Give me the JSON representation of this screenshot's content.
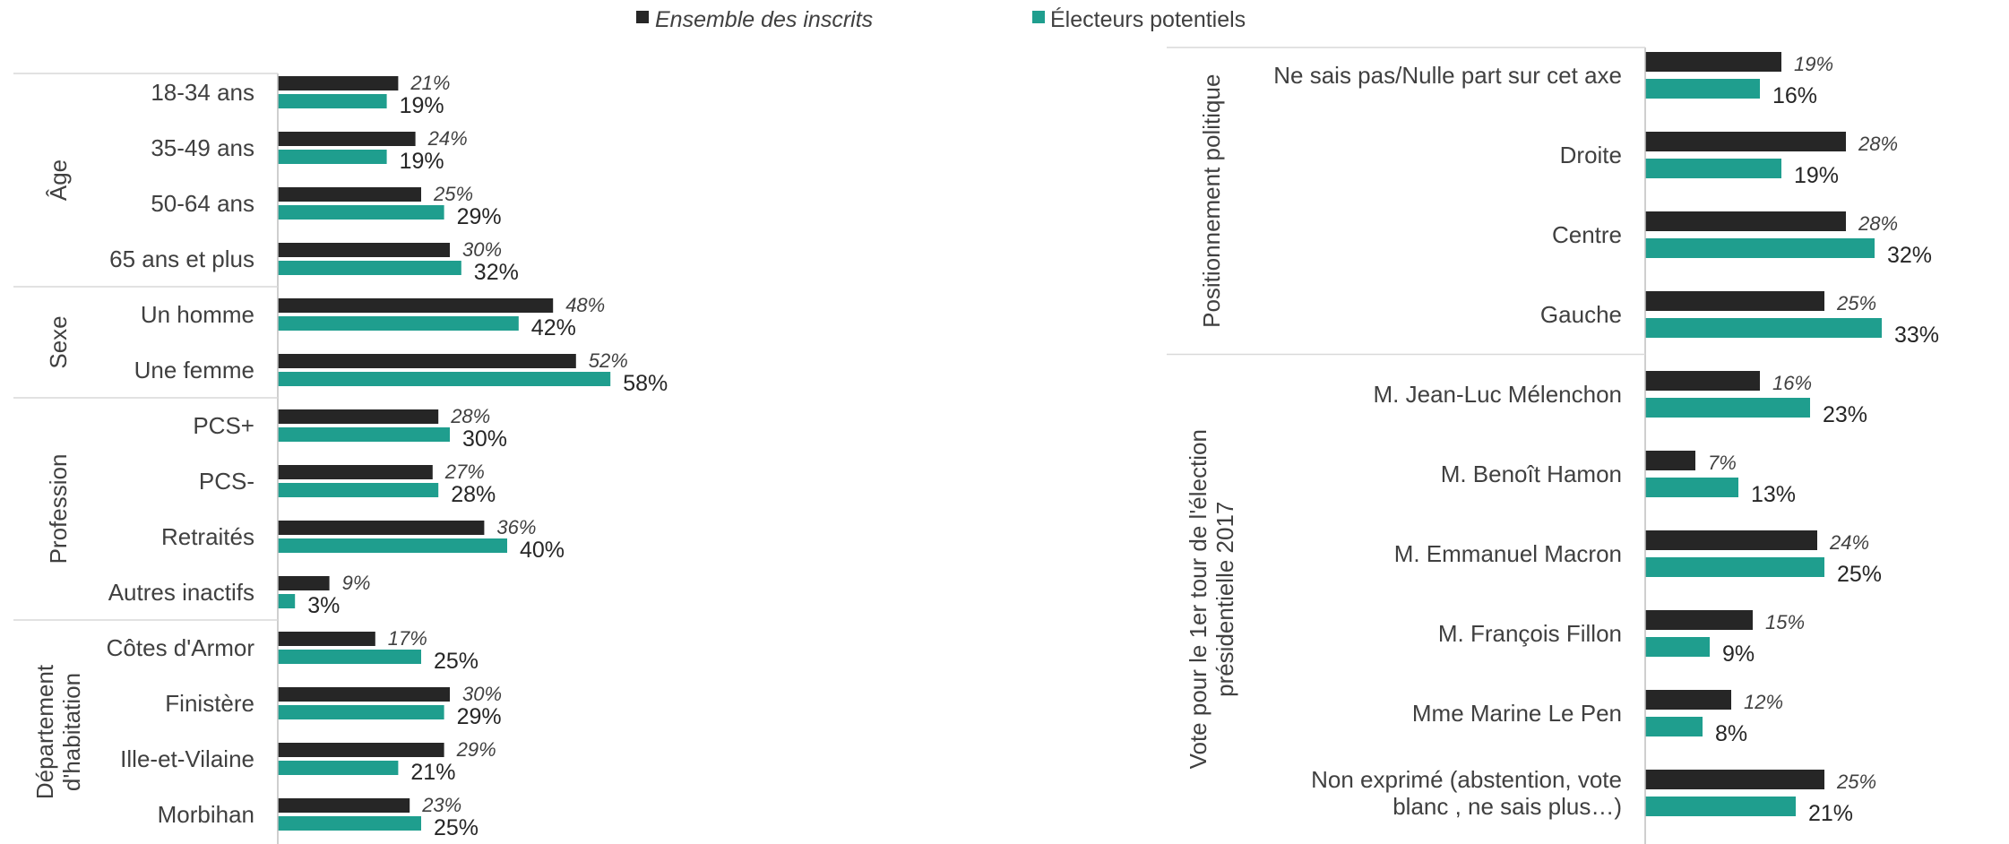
{
  "legend": {
    "series_a": "Ensemble des inscrits",
    "series_b": "Électeurs potentiels"
  },
  "colors": {
    "series_a": "#262626",
    "series_b": "#1f9e8e",
    "text": "#404040"
  },
  "chart_data": [
    {
      "type": "bar",
      "orientation": "horizontal",
      "value_format": "percent",
      "xlim": [
        0,
        100
      ],
      "grid": false,
      "legend_position": "top",
      "series": [
        {
          "name": "Ensemble des inscrits"
        },
        {
          "name": "Électeurs potentiels"
        }
      ],
      "groups": [
        {
          "label": "Âge",
          "items": [
            {
              "category": "18-34 ans",
              "a": 21,
              "b": 19
            },
            {
              "category": "35-49 ans",
              "a": 24,
              "b": 19
            },
            {
              "category": "50-64 ans",
              "a": 25,
              "b": 29
            },
            {
              "category": "65 ans et plus",
              "a": 30,
              "b": 32
            }
          ]
        },
        {
          "label": "Sexe",
          "items": [
            {
              "category": "Un homme",
              "a": 48,
              "b": 42
            },
            {
              "category": "Une femme",
              "a": 52,
              "b": 58
            }
          ]
        },
        {
          "label": "Profession",
          "items": [
            {
              "category": "PCS+",
              "a": 28,
              "b": 30
            },
            {
              "category": "PCS-",
              "a": 27,
              "b": 28
            },
            {
              "category": "Retraités",
              "a": 36,
              "b": 40
            },
            {
              "category": "Autres inactifs",
              "a": 9,
              "b": 3
            }
          ]
        },
        {
          "label": "Département d'habitation",
          "label_lines": [
            "Département",
            "d'habitation"
          ],
          "items": [
            {
              "category": "Côtes d'Armor",
              "a": 17,
              "b": 25
            },
            {
              "category": "Finistère",
              "a": 30,
              "b": 29
            },
            {
              "category": "Ille-et-Vilaine",
              "a": 29,
              "b": 21
            },
            {
              "category": "Morbihan",
              "a": 23,
              "b": 25
            }
          ]
        }
      ]
    },
    {
      "type": "bar",
      "orientation": "horizontal",
      "value_format": "percent",
      "xlim": [
        0,
        100
      ],
      "grid": false,
      "series": [
        {
          "name": "Ensemble des inscrits"
        },
        {
          "name": "Électeurs potentiels"
        }
      ],
      "groups": [
        {
          "label": "Positionnement politique",
          "label_lines": [
            "Positionnement politique"
          ],
          "items": [
            {
              "category": "Ne sais pas/Nulle part sur cet axe",
              "a": 19,
              "b": 16
            },
            {
              "category": "Droite",
              "a": 28,
              "b": 19
            },
            {
              "category": "Centre",
              "a": 28,
              "b": 32
            },
            {
              "category": "Gauche",
              "a": 25,
              "b": 33
            }
          ]
        },
        {
          "label": "Vote pour le 1er tour de l'élection présidentielle 2017",
          "label_lines": [
            "Vote pour le 1er tour de l'élection",
            "présidentielle 2017"
          ],
          "items": [
            {
              "category": "M. Jean-Luc Mélenchon",
              "a": 16,
              "b": 23
            },
            {
              "category": "M. Benoît Hamon",
              "a": 7,
              "b": 13
            },
            {
              "category": "M. Emmanuel Macron",
              "a": 24,
              "b": 25
            },
            {
              "category": "M. François Fillon",
              "a": 15,
              "b": 9
            },
            {
              "category": "Mme Marine Le Pen",
              "a": 12,
              "b": 8
            },
            {
              "category": "Non exprimé (abstention, vote blanc , ne sais plus…)",
              "category_lines": [
                "Non exprimé (abstention, vote",
                "blanc , ne sais plus…)"
              ],
              "a": 25,
              "b": 21
            }
          ]
        }
      ]
    }
  ]
}
